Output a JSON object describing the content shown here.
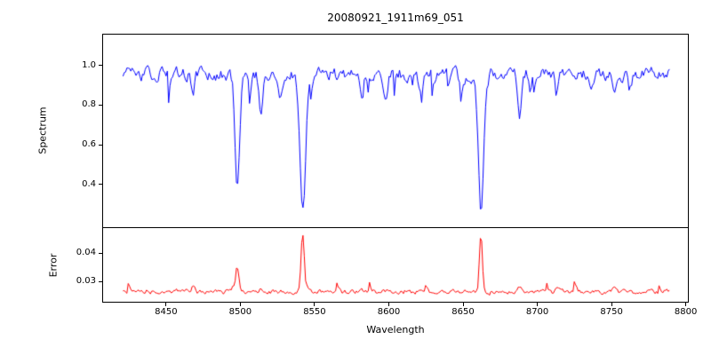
{
  "figure": {
    "background": "#ffffff",
    "spine_color": "#000000"
  },
  "chart_data": {
    "type": "line",
    "title": "20080921_1911m69_051",
    "xlabel": "Wavelength",
    "grid": false,
    "legend": "none",
    "xlim": [
      8407,
      8802
    ],
    "x_ticks": [
      8450,
      8500,
      8550,
      8600,
      8650,
      8700,
      8750,
      8800
    ],
    "x_tick_labels": [
      "8450",
      "8500",
      "8550",
      "8600",
      "8650",
      "8700",
      "8750",
      "8800"
    ],
    "x_data_start": 8421,
    "x_data_end": 8789,
    "n_points": 420,
    "noise_seed": 20080921,
    "panels": [
      {
        "name": "spectrum",
        "ylabel": "Spectrum",
        "line_color": "#0000ff",
        "ylim": [
          0.18,
          1.16
        ],
        "y_ticks": [
          0.4,
          0.6,
          0.8,
          1.0
        ],
        "y_tick_labels": [
          "0.4",
          "0.6",
          "0.8",
          "1.0"
        ],
        "continuum_level": 0.955,
        "noise_amplitude": 0.035,
        "absorption_lines": [
          {
            "center": 8468,
            "depth": 0.1,
            "sigma": 1.2
          },
          {
            "center": 8498,
            "depth": 0.54,
            "sigma": 1.5
          },
          {
            "center": 8514,
            "depth": 0.2,
            "sigma": 1.2
          },
          {
            "center": 8527,
            "depth": 0.09,
            "sigma": 1.0
          },
          {
            "center": 8542,
            "depth": 0.71,
            "sigma": 1.9
          },
          {
            "center": 8582,
            "depth": 0.08,
            "sigma": 1.0
          },
          {
            "center": 8598,
            "depth": 0.11,
            "sigma": 1.2
          },
          {
            "center": 8621,
            "depth": 0.09,
            "sigma": 1.0
          },
          {
            "center": 8648,
            "depth": 0.07,
            "sigma": 1.0
          },
          {
            "center": 8662,
            "depth": 0.7,
            "sigma": 1.7
          },
          {
            "center": 8688,
            "depth": 0.22,
            "sigma": 1.3
          },
          {
            "center": 8713,
            "depth": 0.11,
            "sigma": 1.1
          },
          {
            "center": 8736,
            "depth": 0.09,
            "sigma": 1.0
          },
          {
            "center": 8752,
            "depth": 0.11,
            "sigma": 1.1
          }
        ]
      },
      {
        "name": "error",
        "ylabel": "Error",
        "line_color": "#ff0000",
        "ylim": [
          0.0225,
          0.04875
        ],
        "y_ticks": [
          0.03,
          0.04
        ],
        "y_tick_labels": [
          "0.03",
          "0.04"
        ],
        "baseline_level": 0.0262,
        "noise_amplitude": 0.0007,
        "spikes": [
          {
            "center": 8468,
            "amp": 0.0016,
            "sigma": 1.2
          },
          {
            "center": 8498,
            "amp": 0.0085,
            "sigma": 1.1
          },
          {
            "center": 8514,
            "amp": 0.0018,
            "sigma": 1.1
          },
          {
            "center": 8542,
            "amp": 0.0205,
            "sigma": 1.1
          },
          {
            "center": 8662,
            "amp": 0.0198,
            "sigma": 1.0
          },
          {
            "center": 8688,
            "amp": 0.002,
            "sigma": 1.2
          },
          {
            "center": 8713,
            "amp": 0.0012,
            "sigma": 1.0
          },
          {
            "center": 8752,
            "amp": 0.0013,
            "sigma": 1.0
          }
        ]
      }
    ]
  }
}
